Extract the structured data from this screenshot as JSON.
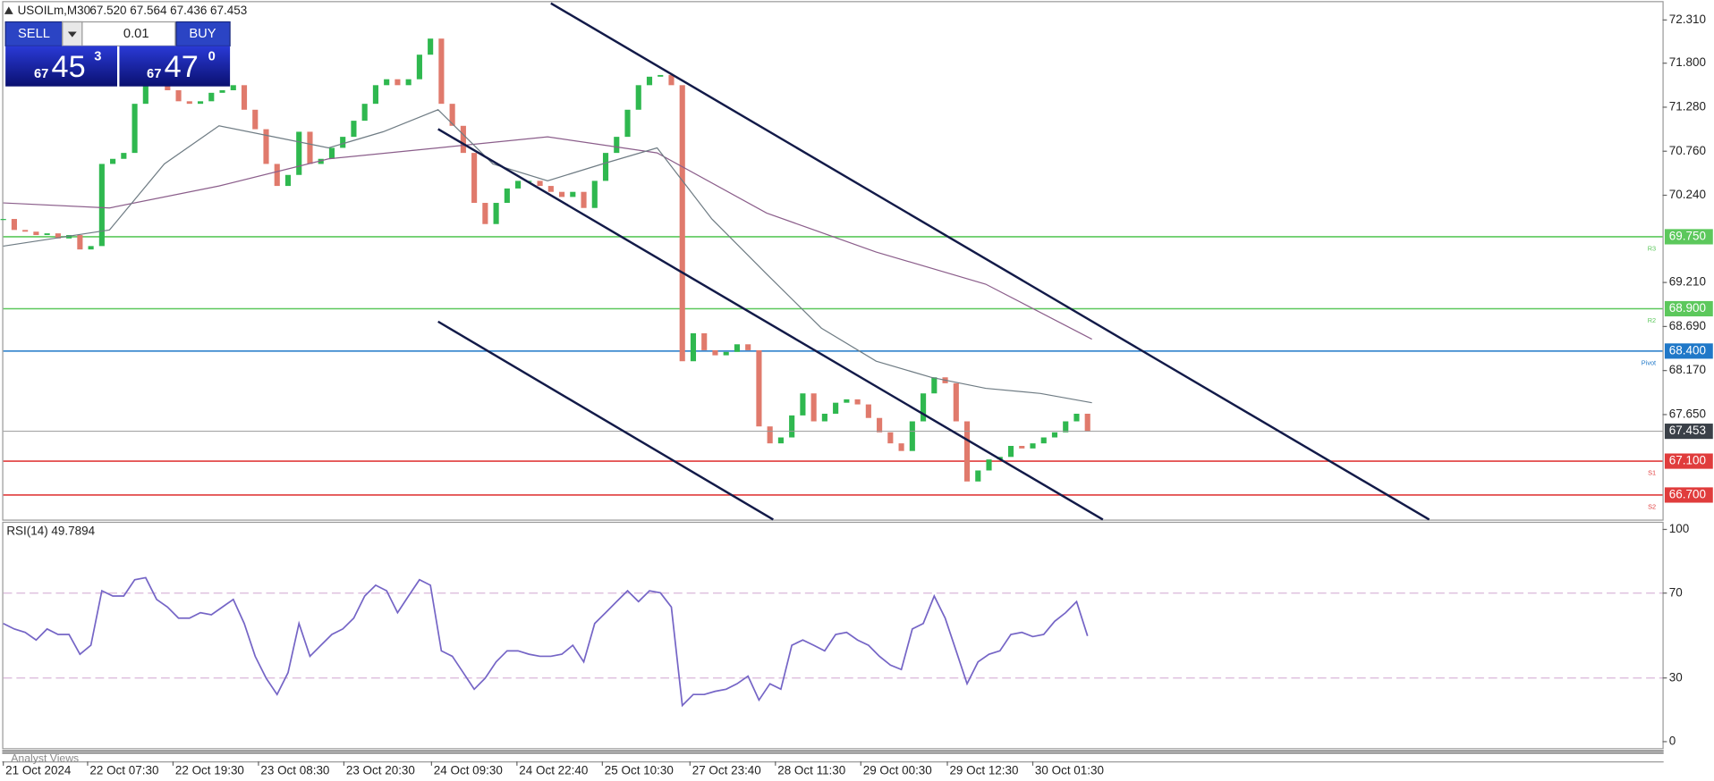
{
  "header": {
    "symbol": "USOILm,M30",
    "ohlc": "67.520 67.564 67.436 67.453"
  },
  "trade_panel": {
    "sell": "SELL",
    "buy": "BUY",
    "volume": "0.01",
    "bid": {
      "big": "67",
      "main": "45",
      "small": "3"
    },
    "ask": {
      "big": "67",
      "main": "47",
      "small": "0"
    }
  },
  "chart_data": [
    {
      "type": "candlestick",
      "up_color": "#2fb84f",
      "down_color": "#e07a6c",
      "values": [
        69.96,
        69.83,
        69.81,
        69.77,
        69.79,
        69.73,
        69.77,
        69.6,
        69.64,
        70.61,
        70.67,
        70.74,
        71.32,
        71.64,
        71.57,
        71.48,
        71.35,
        71.32,
        71.35,
        71.45,
        71.48,
        71.54,
        71.25,
        71.02,
        70.61,
        70.35,
        70.48,
        70.99,
        70.61,
        70.67,
        70.8,
        70.93,
        71.12,
        71.32,
        71.54,
        71.61,
        71.54,
        71.61,
        71.9,
        72.09,
        71.32,
        71.06,
        70.74,
        70.15,
        69.9,
        70.15,
        70.32,
        70.41,
        70.41,
        70.35,
        70.28,
        70.22,
        70.28,
        70.09,
        70.41,
        70.74,
        70.93,
        71.25,
        71.54,
        71.64,
        71.66,
        71.54,
        68.28,
        68.61,
        68.41,
        68.35,
        68.39,
        68.48,
        68.41,
        67.51,
        67.31,
        67.38,
        67.64,
        67.9,
        67.57,
        67.66,
        67.79,
        67.83,
        67.77,
        67.61,
        67.44,
        67.31,
        67.22,
        67.57,
        67.9,
        68.09,
        68.02,
        67.57,
        66.86,
        66.99,
        67.12,
        67.15,
        67.28,
        67.25,
        67.31,
        67.38,
        67.44,
        67.57,
        67.66,
        67.453
      ],
      "overlays": [
        {
          "color": "#8b5e8b",
          "x": [
            0,
            9.7,
            19.7,
            29.7,
            39.7,
            49.7,
            59.7,
            69.7,
            79.7,
            89.7,
            99.4
          ],
          "values": [
            70.15,
            70.09,
            70.35,
            70.67,
            70.8,
            70.93,
            70.74,
            70.03,
            69.57,
            69.19,
            68.54
          ]
        },
        {
          "color": "#6f7c84",
          "x": [
            0,
            9.7,
            14.7,
            19.7,
            24.7,
            29.7,
            34.7,
            39.7,
            44.7,
            49.7,
            54.7,
            59.7,
            64.7,
            69.7,
            74.7,
            79.7,
            84.7,
            89.7,
            94.7,
            99.4
          ],
          "values": [
            69.64,
            69.83,
            70.61,
            71.06,
            70.93,
            70.8,
            70.99,
            71.25,
            70.61,
            70.41,
            70.61,
            70.8,
            69.96,
            69.31,
            68.67,
            68.28,
            68.09,
            67.96,
            67.9,
            67.79
          ]
        }
      ],
      "levels": [
        {
          "name": "R3",
          "value": 69.75,
          "label": "69.750",
          "color": "#5cc85c"
        },
        {
          "name": "R2",
          "value": 68.9,
          "label": "68.900",
          "color": "#5cc85c"
        },
        {
          "name": "Pivot",
          "value": 68.4,
          "label": "68.400",
          "color": "#1f78c8"
        },
        {
          "name": "S1",
          "value": 67.1,
          "label": "67.100",
          "color": "#e03c3c"
        },
        {
          "name": "S2",
          "value": 66.7,
          "label": "66.700",
          "color": "#e03c3c"
        }
      ],
      "last_price": {
        "value": 67.453,
        "label": "67.453",
        "color": "#3a4048"
      },
      "xlim": [
        0,
        151.5
      ],
      "xticks": [
        {
          "value": 0,
          "label": "21 Oct 2024"
        },
        {
          "value": 7.7,
          "label": "22 Oct 07:30"
        },
        {
          "value": 15.5,
          "label": "22 Oct 19:30"
        },
        {
          "value": 23.3,
          "label": "23 Oct 08:30"
        },
        {
          "value": 31.1,
          "label": "23 Oct 20:30"
        },
        {
          "value": 39.1,
          "label": "24 Oct 09:30"
        },
        {
          "value": 46.9,
          "label": "24 Oct 22:40"
        },
        {
          "value": 54.7,
          "label": "25 Oct 10:30"
        },
        {
          "value": 62.7,
          "label": "27 Oct 23:40"
        },
        {
          "value": 70.5,
          "label": "28 Oct 11:30"
        },
        {
          "value": 78.3,
          "label": "29 Oct 00:30"
        },
        {
          "value": 86.2,
          "label": "29 Oct 12:30"
        },
        {
          "value": 94,
          "label": "30 Oct 01:30"
        }
      ],
      "ylim": [
        66.41,
        72.52
      ],
      "yticks": [
        {
          "value": 72.31,
          "label": "72.310"
        },
        {
          "value": 71.8,
          "label": "71.800"
        },
        {
          "value": 71.28,
          "label": "71.280"
        },
        {
          "value": 70.76,
          "label": "70.760"
        },
        {
          "value": 70.24,
          "label": "70.240"
        },
        {
          "value": 69.21,
          "label": "69.210"
        },
        {
          "value": 68.69,
          "label": "68.690"
        },
        {
          "value": 68.17,
          "label": "68.170"
        },
        {
          "value": 67.65,
          "label": "67.650"
        }
      ]
    },
    {
      "type": "line",
      "title": "RSI(14) 49.7894",
      "color": "#7565c6",
      "values": [
        55.7,
        53.1,
        51.5,
        47.9,
        53.1,
        50.5,
        50.5,
        41.2,
        45.4,
        71.1,
        68.6,
        68.6,
        76.3,
        77.3,
        67.0,
        63.4,
        58.2,
        58.2,
        60.8,
        59.8,
        63.4,
        67.0,
        55.7,
        40.2,
        29.9,
        22.2,
        32.5,
        55.7,
        40.2,
        45.4,
        50.5,
        53.1,
        58.2,
        68.6,
        73.7,
        71.1,
        60.8,
        68.6,
        76.3,
        73.7,
        42.8,
        40.2,
        32.5,
        24.7,
        29.9,
        37.6,
        42.8,
        42.8,
        41.2,
        40.2,
        40.2,
        41.2,
        45.4,
        37.6,
        55.7,
        60.8,
        66.0,
        71.1,
        66.0,
        71.1,
        70.1,
        63.4,
        17.0,
        22.2,
        22.2,
        23.7,
        24.7,
        27.3,
        30.9,
        19.6,
        27.3,
        24.7,
        45.4,
        47.9,
        45.4,
        42.8,
        50.5,
        51.5,
        47.9,
        45.4,
        40.2,
        36.1,
        34.0,
        53.1,
        55.7,
        68.6,
        58.2,
        42.8,
        27.3,
        37.6,
        41.2,
        42.8,
        50.5,
        51.5,
        49.5,
        50.5,
        56.7,
        60.8,
        66.0,
        49.8
      ],
      "levels": [
        30,
        70
      ],
      "level_color": "#d9b6d9",
      "xlim": [
        0,
        151.5
      ],
      "ylim": [
        -3.6,
        103.1
      ],
      "yticks": [
        0,
        30,
        70,
        100
      ]
    }
  ],
  "footer": {
    "tab": "Analyst Views"
  }
}
